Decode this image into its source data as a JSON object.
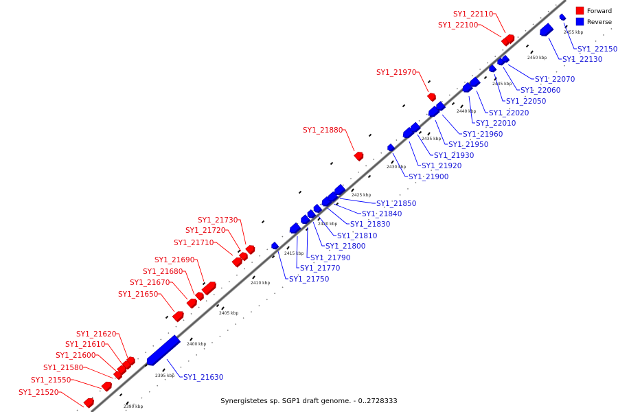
{
  "legend": {
    "forward": {
      "label": "Forward",
      "color": "#ff0000"
    },
    "reverse": {
      "label": "Reverse",
      "color": "#0000ff"
    }
  },
  "footer": "Synergistetes sp. SGP1 draft genome. - 0..2728333",
  "ruler": {
    "tick_labels": [
      "2390 kbp",
      "2395 kbp",
      "2400 kbp",
      "2405 kbp",
      "2410 kbp",
      "2415 kbp",
      "2420 kbp",
      "2425 kbp",
      "2430 kbp",
      "2435 kbp",
      "2440 kbp",
      "2445 kbp",
      "2450 kbp",
      "2455 kbp"
    ]
  },
  "forward_genes": [
    {
      "label": "SY1_21520"
    },
    {
      "label": "SY1_21550"
    },
    {
      "label": "SY1_21580"
    },
    {
      "label": "SY1_21600"
    },
    {
      "label": "SY1_21610"
    },
    {
      "label": "SY1_21620"
    },
    {
      "label": "SY1_21650"
    },
    {
      "label": "SY1_21670"
    },
    {
      "label": "SY1_21680"
    },
    {
      "label": "SY1_21690"
    },
    {
      "label": "SY1_21710"
    },
    {
      "label": "SY1_21720"
    },
    {
      "label": "SY1_21730"
    },
    {
      "label": "SY1_21880"
    },
    {
      "label": "SY1_21970"
    },
    {
      "label": "SY1_22100"
    },
    {
      "label": "SY1_22110"
    }
  ],
  "reverse_genes": [
    {
      "label": "SY1_21630"
    },
    {
      "label": "SY1_21750"
    },
    {
      "label": "SY1_21770"
    },
    {
      "label": "SY1_21790"
    },
    {
      "label": "SY1_21800"
    },
    {
      "label": "SY1_21810"
    },
    {
      "label": "SY1_21830"
    },
    {
      "label": "SY1_21840"
    },
    {
      "label": "SY1_21850"
    },
    {
      "label": "SY1_21900"
    },
    {
      "label": "SY1_21920"
    },
    {
      "label": "SY1_21930"
    },
    {
      "label": "SY1_21950"
    },
    {
      "label": "SY1_21960"
    },
    {
      "label": "SY1_22010"
    },
    {
      "label": "SY1_22020"
    },
    {
      "label": "SY1_22050"
    },
    {
      "label": "SY1_22060"
    },
    {
      "label": "SY1_22070"
    },
    {
      "label": "SY1_22130"
    },
    {
      "label": "SY1_22150"
    }
  ]
}
